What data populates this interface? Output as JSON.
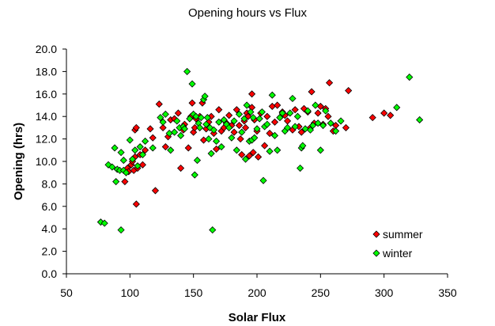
{
  "chart_data": {
    "type": "scatter",
    "title": "Opening hours vs Flux",
    "xlabel": "Solar Flux",
    "ylabel": "Opening (hrs)",
    "xlim": [
      50,
      350
    ],
    "ylim": [
      0,
      20
    ],
    "x_ticks": [
      "50",
      "100",
      "150",
      "200",
      "250",
      "300",
      "350"
    ],
    "y_ticks": [
      "0.0",
      "2.0",
      "4.0",
      "6.0",
      "8.0",
      "10.0",
      "12.0",
      "14.0",
      "16.0",
      "18.0",
      "20.0"
    ],
    "grid": false,
    "legend": "bottom-right",
    "series": [
      {
        "name": "summer",
        "color": "#ff0000",
        "points": [
          [
            96,
            8.2
          ],
          [
            98,
            9.4
          ],
          [
            99,
            9.1
          ],
          [
            101,
            9.7
          ],
          [
            102,
            10.0
          ],
          [
            103,
            9.2
          ],
          [
            104,
            10.4
          ],
          [
            104,
            12.8
          ],
          [
            105,
            13.0
          ],
          [
            105,
            6.2
          ],
          [
            106,
            9.4
          ],
          [
            108,
            10.6
          ],
          [
            110,
            9.7
          ],
          [
            112,
            11.0
          ],
          [
            116,
            12.9
          ],
          [
            118,
            12.1
          ],
          [
            120,
            7.4
          ],
          [
            123,
            15.1
          ],
          [
            126,
            13.0
          ],
          [
            128,
            11.3
          ],
          [
            130,
            12.2
          ],
          [
            132,
            13.7
          ],
          [
            135,
            13.8
          ],
          [
            138,
            14.3
          ],
          [
            140,
            9.4
          ],
          [
            142,
            12.8
          ],
          [
            143,
            13.3
          ],
          [
            146,
            11.2
          ],
          [
            148,
            14.0
          ],
          [
            149,
            15.2
          ],
          [
            150,
            12.6
          ],
          [
            151,
            13.0
          ],
          [
            152,
            13.8
          ],
          [
            155,
            14.0
          ],
          [
            157,
            15.2
          ],
          [
            158,
            11.9
          ],
          [
            160,
            12.9
          ],
          [
            162,
            13.5
          ],
          [
            164,
            14.0
          ],
          [
            166,
            12.5
          ],
          [
            168,
            11.1
          ],
          [
            170,
            14.6
          ],
          [
            172,
            12.7
          ],
          [
            174,
            13.0
          ],
          [
            176,
            13.4
          ],
          [
            178,
            14.1
          ],
          [
            180,
            13.2
          ],
          [
            182,
            12.6
          ],
          [
            184,
            14.6
          ],
          [
            186,
            13.2
          ],
          [
            187,
            12.0
          ],
          [
            188,
            10.6
          ],
          [
            190,
            13.6
          ],
          [
            191,
            13.0
          ],
          [
            192,
            14.3
          ],
          [
            193,
            14.0
          ],
          [
            194,
            10.5
          ],
          [
            196,
            14.8
          ],
          [
            196,
            16.0
          ],
          [
            197,
            10.8
          ],
          [
            198,
            13.7
          ],
          [
            200,
            12.7
          ],
          [
            201,
            10.4
          ],
          [
            203,
            14.3
          ],
          [
            206,
            11.4
          ],
          [
            208,
            14.0
          ],
          [
            210,
            12.5
          ],
          [
            212,
            14.9
          ],
          [
            214,
            13.5
          ],
          [
            216,
            15.0
          ],
          [
            218,
            13.9
          ],
          [
            220,
            14.4
          ],
          [
            222,
            14.1
          ],
          [
            224,
            13.6
          ],
          [
            228,
            12.8
          ],
          [
            230,
            14.6
          ],
          [
            233,
            13.1
          ],
          [
            235,
            12.6
          ],
          [
            237,
            14.7
          ],
          [
            240,
            14.4
          ],
          [
            242,
            13.0
          ],
          [
            243,
            16.2
          ],
          [
            245,
            13.4
          ],
          [
            248,
            14.3
          ],
          [
            250,
            14.9
          ],
          [
            252,
            13.3
          ],
          [
            254,
            14.7
          ],
          [
            256,
            14.0
          ],
          [
            257,
            17.0
          ],
          [
            260,
            12.7
          ],
          [
            262,
            13.2
          ],
          [
            270,
            13.0
          ],
          [
            272,
            16.3
          ],
          [
            291,
            13.9
          ],
          [
            300,
            14.3
          ],
          [
            305,
            14.1
          ]
        ]
      },
      {
        "name": "winter",
        "color": "#00ff00",
        "points": [
          [
            77,
            4.6
          ],
          [
            80,
            4.5
          ],
          [
            83,
            9.7
          ],
          [
            86,
            9.5
          ],
          [
            88,
            11.2
          ],
          [
            89,
            8.2
          ],
          [
            90,
            9.3
          ],
          [
            92,
            9.2
          ],
          [
            93,
            3.9
          ],
          [
            93,
            10.8
          ],
          [
            95,
            10.1
          ],
          [
            95,
            9.2
          ],
          [
            97,
            9.0
          ],
          [
            100,
            11.9
          ],
          [
            102,
            10.2
          ],
          [
            104,
            11.0
          ],
          [
            106,
            9.6
          ],
          [
            108,
            11.3
          ],
          [
            110,
            10.6
          ],
          [
            112,
            11.8
          ],
          [
            118,
            11.2
          ],
          [
            124,
            13.9
          ],
          [
            126,
            13.5
          ],
          [
            128,
            14.2
          ],
          [
            131,
            12.5
          ],
          [
            132,
            11.0
          ],
          [
            135,
            12.6
          ],
          [
            137,
            13.6
          ],
          [
            139,
            13.0
          ],
          [
            140,
            12.3
          ],
          [
            142,
            13.1
          ],
          [
            143,
            12.9
          ],
          [
            145,
            18.0
          ],
          [
            147,
            13.8
          ],
          [
            149,
            16.9
          ],
          [
            150,
            14.2
          ],
          [
            151,
            8.8
          ],
          [
            152,
            14.0
          ],
          [
            153,
            10.1
          ],
          [
            154,
            13.4
          ],
          [
            155,
            13.0
          ],
          [
            156,
            13.9
          ],
          [
            158,
            15.5
          ],
          [
            159,
            15.8
          ],
          [
            160,
            13.3
          ],
          [
            161,
            13.9
          ],
          [
            162,
            12.0
          ],
          [
            163,
            13.0
          ],
          [
            164,
            10.7
          ],
          [
            165,
            3.9
          ],
          [
            166,
            12.8
          ],
          [
            168,
            11.8
          ],
          [
            170,
            13.5
          ],
          [
            172,
            11.3
          ],
          [
            174,
            13.7
          ],
          [
            176,
            13.3
          ],
          [
            178,
            13.0
          ],
          [
            180,
            12.1
          ],
          [
            182,
            13.6
          ],
          [
            184,
            11.0
          ],
          [
            186,
            14.2
          ],
          [
            188,
            12.6
          ],
          [
            190,
            13.8
          ],
          [
            191,
            10.2
          ],
          [
            192,
            15.0
          ],
          [
            194,
            11.8
          ],
          [
            195,
            14.4
          ],
          [
            196,
            11.9
          ],
          [
            197,
            13.9
          ],
          [
            198,
            12.1
          ],
          [
            200,
            12.9
          ],
          [
            202,
            13.8
          ],
          [
            204,
            14.4
          ],
          [
            205,
            8.3
          ],
          [
            206,
            13.1
          ],
          [
            208,
            13.3
          ],
          [
            210,
            10.9
          ],
          [
            212,
            15.9
          ],
          [
            214,
            12.3
          ],
          [
            216,
            11.0
          ],
          [
            218,
            13.9
          ],
          [
            220,
            14.3
          ],
          [
            222,
            12.7
          ],
          [
            224,
            13.0
          ],
          [
            226,
            14.3
          ],
          [
            228,
            15.6
          ],
          [
            230,
            13.1
          ],
          [
            232,
            14.0
          ],
          [
            234,
            9.4
          ],
          [
            235,
            11.2
          ],
          [
            236,
            11.4
          ],
          [
            238,
            12.9
          ],
          [
            240,
            14.5
          ],
          [
            242,
            12.8
          ],
          [
            244,
            13.2
          ],
          [
            246,
            15.0
          ],
          [
            248,
            13.4
          ],
          [
            250,
            11.0
          ],
          [
            252,
            13.2
          ],
          [
            254,
            14.5
          ],
          [
            258,
            13.4
          ],
          [
            262,
            12.7
          ],
          [
            266,
            13.6
          ],
          [
            310,
            14.8
          ],
          [
            320,
            17.5
          ],
          [
            328,
            13.7
          ]
        ]
      }
    ]
  }
}
